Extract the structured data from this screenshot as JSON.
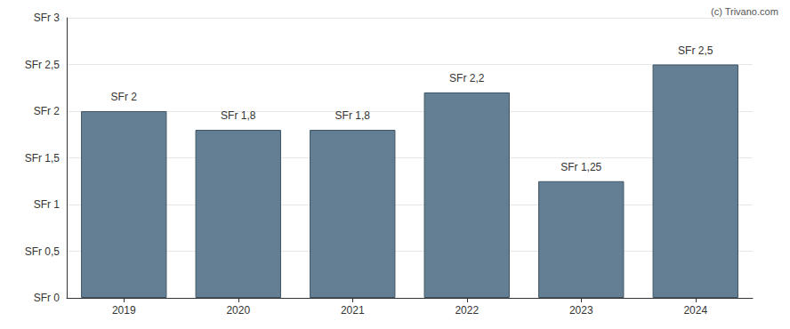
{
  "chart_data": {
    "type": "bar",
    "annotation": "(c) Trivano.com",
    "categories": [
      "2019",
      "2020",
      "2021",
      "2022",
      "2023",
      "2024"
    ],
    "values": [
      2,
      1.8,
      1.8,
      2.2,
      1.25,
      2.5
    ],
    "value_labels": [
      "SFr 2",
      "SFr 1,8",
      "SFr 1,8",
      "SFr 2,2",
      "SFr 1,25",
      "SFr 2,5"
    ],
    "data_labels": true,
    "color": "#647f93",
    "ylim": [
      0,
      3
    ],
    "yticks": [
      {
        "value": 0,
        "label": "SFr 0"
      },
      {
        "value": 0.5,
        "label": "SFr 0,5"
      },
      {
        "value": 1,
        "label": "SFr 1"
      },
      {
        "value": 1.5,
        "label": "SFr 1,5"
      },
      {
        "value": 2,
        "label": "SFr 2"
      },
      {
        "value": 2.5,
        "label": "SFr 2,5"
      },
      {
        "value": 3,
        "label": "SFr 3"
      }
    ],
    "grid": true
  }
}
